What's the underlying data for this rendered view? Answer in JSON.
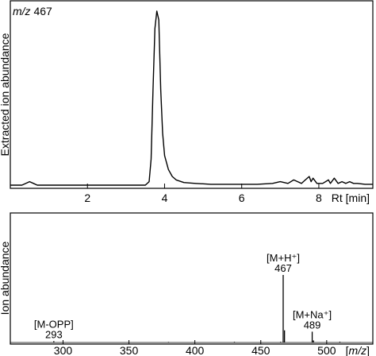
{
  "chart_data": [
    {
      "type": "line",
      "title_parts": {
        "italic": "m/z",
        "value": "467"
      },
      "ylabel": "Extracted ion abundance",
      "xlabel_tick_text": "Rt [min]",
      "xlim": [
        0,
        9.4
      ],
      "ylim": [
        0,
        1.0
      ],
      "xticks": [
        2,
        4,
        6,
        8
      ],
      "xtick_labels": [
        "2",
        "4",
        "6",
        "8"
      ],
      "series": [
        {
          "x": [
            0,
            0.3,
            0.5,
            0.6,
            0.7,
            0.9,
            1.2,
            1.6,
            2.0,
            2.4,
            2.8,
            3.2,
            3.5,
            3.6,
            3.65,
            3.7,
            3.75,
            3.8,
            3.85,
            3.9,
            3.95,
            4.0,
            4.1,
            4.2,
            4.3,
            4.5,
            4.8,
            5.2,
            5.6,
            6.0,
            6.4,
            6.8,
            7.0,
            7.2,
            7.35,
            7.45,
            7.55,
            7.65,
            7.75,
            7.8,
            7.85,
            7.95,
            8.1,
            8.25,
            8.3,
            8.4,
            8.5,
            8.6,
            8.7,
            8.8,
            8.9,
            9.0,
            9.2,
            9.4
          ],
          "y": [
            0.0,
            0.0,
            0.02,
            0.01,
            0.0,
            0.0,
            0.0,
            0.0,
            0.0,
            0.0,
            0.0,
            0.0,
            0.0,
            0.02,
            0.15,
            0.55,
            0.9,
            1.0,
            0.95,
            0.55,
            0.3,
            0.17,
            0.09,
            0.05,
            0.03,
            0.015,
            0.01,
            0.005,
            0.005,
            0.005,
            0.005,
            0.01,
            0.02,
            0.01,
            0.03,
            0.02,
            0.01,
            0.03,
            0.05,
            0.02,
            0.04,
            0.01,
            0.01,
            0.03,
            0.01,
            0.04,
            0.01,
            0.02,
            0.01,
            0.02,
            0.01,
            0.01,
            0.005,
            0.005
          ]
        }
      ]
    },
    {
      "type": "bar",
      "ylabel": "Ion abundance",
      "xlabel_tick_text": "[m/z]",
      "xlim": [
        260,
        535
      ],
      "ylim": [
        0,
        1.0
      ],
      "xticks": [
        300,
        350,
        400,
        450,
        500
      ],
      "xtick_labels": [
        "300",
        "350",
        "400",
        "450",
        "500"
      ],
      "peaks": [
        {
          "mz": 293,
          "value": 0.02
        },
        {
          "mz": 465,
          "value": 0.01
        },
        {
          "mz": 467,
          "value": 1.0
        },
        {
          "mz": 468,
          "value": 0.18
        },
        {
          "mz": 489,
          "value": 0.16
        },
        {
          "mz": 490,
          "value": 0.03
        },
        {
          "mz": 430,
          "value": 0.01
        },
        {
          "mz": 510,
          "value": 0.012
        },
        {
          "mz": 380,
          "value": 0.008
        }
      ],
      "annotations": [
        {
          "ion": "[M-OPP]",
          "mz_label": "293",
          "mz": 293
        },
        {
          "ion": "[M+H⁺]",
          "mz_label": "467",
          "mz": 467
        },
        {
          "ion": "[M+Na⁺]",
          "mz_label": "489",
          "mz": 489
        }
      ]
    }
  ]
}
